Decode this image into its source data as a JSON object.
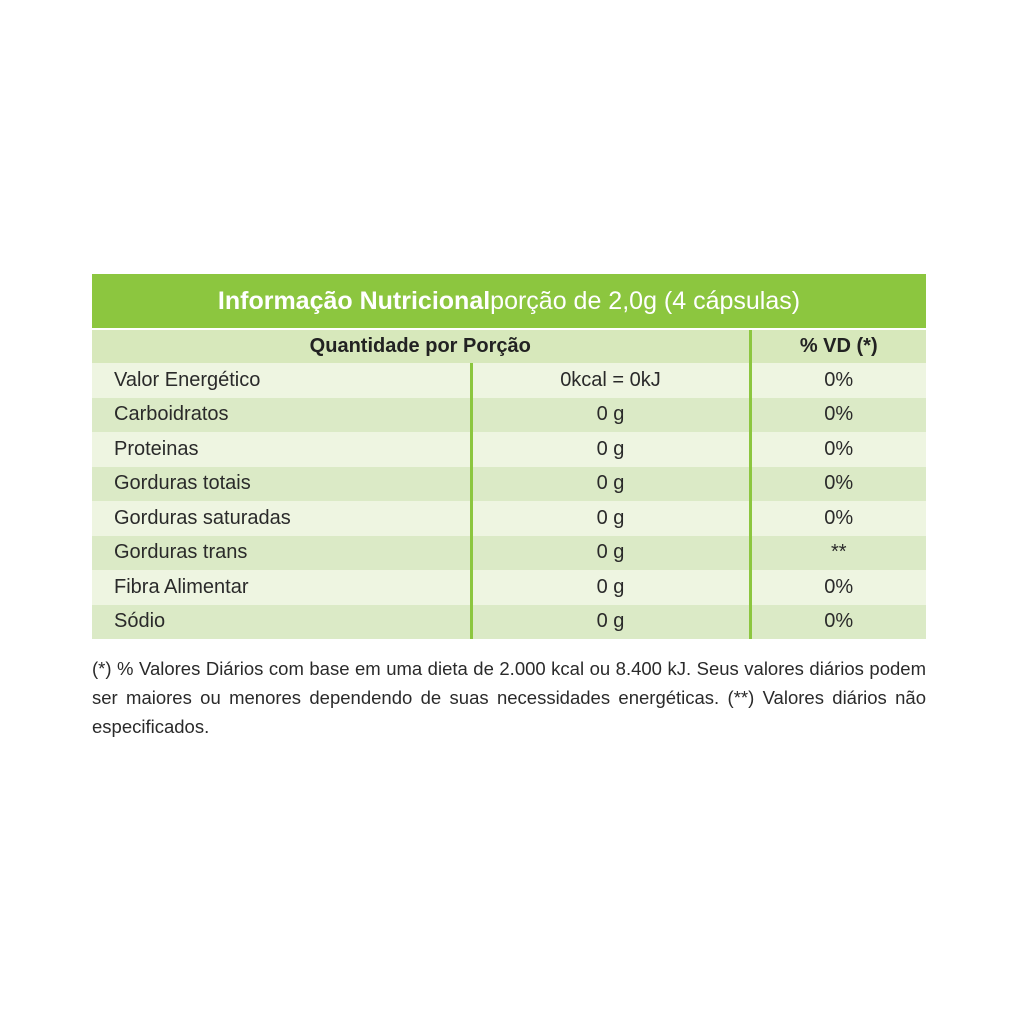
{
  "header": {
    "title": "Informação Nutricional",
    "serving": "porção de 2,0g (4 cápsulas)"
  },
  "table": {
    "columns": [
      "Quantidade por Porção",
      "% VD (*)"
    ],
    "rows": [
      [
        "Valor Energético",
        "0kcal = 0kJ",
        "0%"
      ],
      [
        "Carboidratos",
        "0 g",
        "0%"
      ],
      [
        "Proteinas",
        "0 g",
        "0%"
      ],
      [
        "Gorduras totais",
        "0 g",
        "0%"
      ],
      [
        "Gorduras saturadas",
        "0 g",
        "0%"
      ],
      [
        "Gorduras trans",
        "0 g",
        "**"
      ],
      [
        "Fibra Alimentar",
        "0 g",
        "0%"
      ],
      [
        "Sódio",
        "0 g",
        "0%"
      ]
    ]
  },
  "footnote": "(*) % Valores Diários com base em uma dieta de 2.000 kcal ou 8.400 kJ. Seus valores diários podem ser maiores ou menores dependendo de suas necessidades energéticas. (**) Valores diários não especificados."
}
